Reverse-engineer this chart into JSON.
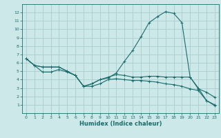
{
  "bg_color": "#cce8e8",
  "grid_color": "#aacccc",
  "line_color": "#1a6b6b",
  "xlabel": "Humidex (Indice chaleur)",
  "xlim": [
    -0.5,
    23.5
  ],
  "ylim": [
    0,
    13
  ],
  "xticks": [
    0,
    1,
    2,
    3,
    4,
    5,
    6,
    7,
    8,
    9,
    10,
    11,
    12,
    13,
    14,
    15,
    16,
    17,
    18,
    19,
    20,
    21,
    22,
    23
  ],
  "yticks": [
    1,
    2,
    3,
    4,
    5,
    6,
    7,
    8,
    9,
    10,
    11,
    12
  ],
  "line1_x": [
    0,
    1,
    2,
    3,
    4,
    5,
    6,
    7,
    8,
    9,
    10,
    11,
    12,
    13,
    14,
    15,
    16,
    17,
    18,
    19,
    20,
    21,
    22,
    23
  ],
  "line1_y": [
    6.5,
    5.7,
    5.5,
    5.5,
    5.5,
    5.0,
    4.5,
    3.2,
    3.5,
    4.0,
    4.2,
    4.8,
    6.2,
    7.5,
    9.1,
    10.8,
    11.5,
    12.1,
    11.9,
    10.8,
    4.3,
    2.9,
    2.5,
    1.9
  ],
  "line2_x": [
    0,
    1,
    2,
    3,
    4,
    5,
    6,
    7,
    8,
    9,
    10,
    11,
    12,
    13,
    14,
    15,
    16,
    17,
    18,
    19,
    20,
    21,
    22,
    23
  ],
  "line2_y": [
    6.5,
    5.7,
    5.5,
    5.5,
    5.5,
    5.0,
    4.5,
    3.2,
    3.5,
    4.0,
    4.3,
    4.6,
    4.5,
    4.3,
    4.3,
    4.4,
    4.4,
    4.3,
    4.3,
    4.3,
    4.3,
    3.0,
    1.5,
    1.0
  ],
  "line3_x": [
    0,
    1,
    2,
    3,
    4,
    5,
    6,
    7,
    8,
    9,
    10,
    11,
    12,
    13,
    14,
    15,
    16,
    17,
    18,
    19,
    20,
    21,
    22,
    23
  ],
  "line3_y": [
    6.5,
    5.7,
    4.9,
    4.9,
    5.2,
    4.9,
    4.5,
    3.2,
    3.2,
    3.5,
    4.0,
    4.1,
    4.0,
    3.9,
    3.9,
    3.8,
    3.7,
    3.5,
    3.4,
    3.2,
    2.9,
    2.7,
    1.5,
    0.9
  ],
  "tick_fontsize": 4.5,
  "xlabel_fontsize": 6.0
}
